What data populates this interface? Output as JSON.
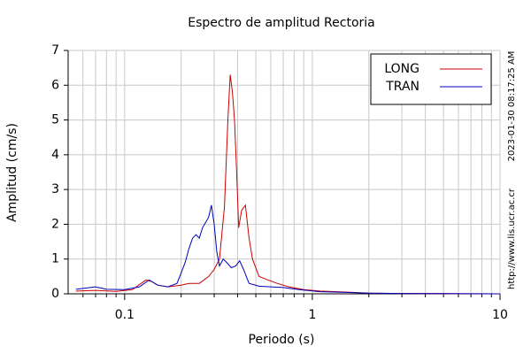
{
  "chart_data": {
    "type": "line",
    "title": "Espectro de amplitud Rectoria",
    "x_label": "Periodo (s)",
    "y_label": "Amplitud (cm/s)",
    "side_texts": [
      "2023-01-30 08:17:25 AM",
      "http://www.lis.ucr.ac.cr"
    ],
    "x_log": true,
    "grid": true,
    "legend": "top-right",
    "xlim": [
      0.05,
      10
    ],
    "xticks": [
      0.1,
      1,
      10
    ],
    "xminor": [
      0.06,
      0.07,
      0.08,
      0.09,
      0.2,
      0.3,
      0.4,
      0.5,
      0.6,
      0.7,
      0.8,
      0.9,
      2,
      3,
      4,
      5,
      6,
      7,
      8,
      9
    ],
    "ylim": [
      0,
      7
    ],
    "yticks": [
      0,
      1,
      2,
      3,
      4,
      5,
      6,
      7
    ],
    "series": [
      {
        "name": "LONG",
        "color": "#cc0000",
        "x": [
          0.055,
          0.07,
          0.09,
          0.11,
          0.13,
          0.14,
          0.15,
          0.17,
          0.2,
          0.22,
          0.25,
          0.28,
          0.3,
          0.32,
          0.34,
          0.355,
          0.365,
          0.375,
          0.385,
          0.395,
          0.405,
          0.42,
          0.44,
          0.46,
          0.48,
          0.52,
          0.58,
          0.65,
          0.75,
          0.9,
          1.1,
          1.5,
          2,
          3,
          5,
          10
        ],
        "values": [
          0.08,
          0.1,
          0.07,
          0.12,
          0.4,
          0.35,
          0.25,
          0.2,
          0.25,
          0.3,
          0.3,
          0.5,
          0.7,
          1.0,
          2.5,
          5.0,
          6.3,
          5.8,
          5.0,
          3.5,
          1.9,
          2.4,
          2.55,
          1.6,
          1.0,
          0.5,
          0.4,
          0.3,
          0.2,
          0.12,
          0.08,
          0.05,
          0.02,
          0.01,
          0.005,
          0
        ]
      },
      {
        "name": "TRAN",
        "color": "#0000bb",
        "x": [
          0.055,
          0.07,
          0.08,
          0.1,
          0.12,
          0.135,
          0.15,
          0.17,
          0.19,
          0.2,
          0.21,
          0.22,
          0.23,
          0.24,
          0.25,
          0.26,
          0.28,
          0.29,
          0.3,
          0.31,
          0.32,
          0.335,
          0.35,
          0.37,
          0.39,
          0.41,
          0.43,
          0.46,
          0.52,
          0.6,
          0.7,
          0.85,
          1.1,
          1.5,
          2,
          3,
          10
        ],
        "values": [
          0.13,
          0.2,
          0.13,
          0.12,
          0.2,
          0.4,
          0.25,
          0.2,
          0.3,
          0.6,
          0.9,
          1.3,
          1.6,
          1.7,
          1.6,
          1.9,
          2.2,
          2.55,
          2.0,
          1.2,
          0.8,
          1.0,
          0.9,
          0.75,
          0.8,
          0.95,
          0.7,
          0.3,
          0.22,
          0.2,
          0.18,
          0.12,
          0.06,
          0.04,
          0.02,
          0.01,
          0
        ]
      }
    ]
  }
}
